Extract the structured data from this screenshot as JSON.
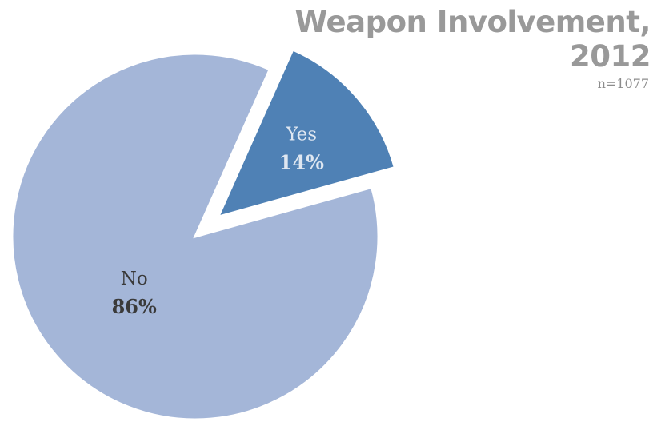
{
  "chart_data": {
    "type": "pie",
    "title": "Weapon Involvement, 2012",
    "title_lines": [
      "Weapon Involvement,",
      "2012"
    ],
    "subtitle": "n=1077",
    "start_angle_deg": 24,
    "slices": [
      {
        "label": "Yes",
        "percent_label": "14%",
        "value": 14,
        "color": "#4f81b5",
        "exploded": true,
        "label_color": "#dfe7f1"
      },
      {
        "label": "No",
        "percent_label": "86%",
        "value": 86,
        "color": "#a4b6d8",
        "exploded": false,
        "label_color": "#3a3a3a"
      }
    ]
  }
}
